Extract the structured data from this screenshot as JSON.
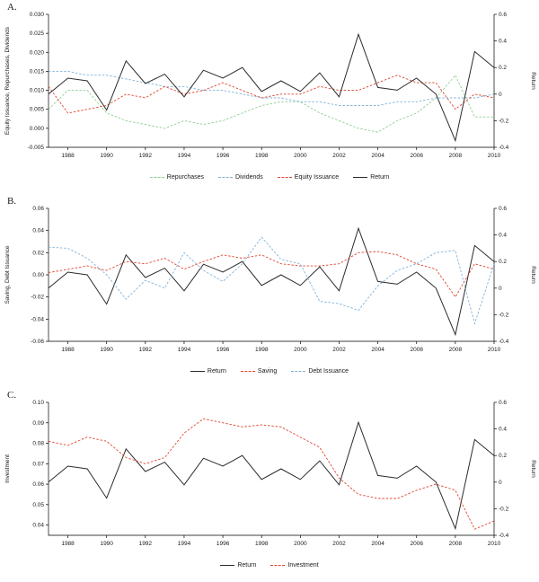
{
  "figure": {
    "background": "#ffffff",
    "text_color": "#1a1a1a",
    "axis_color": "#000000"
  },
  "chart_data": [
    {
      "type": "line",
      "panel_label": "A.",
      "ylabel_left": "Equity Issuance, Repurchases, Dividends",
      "ylabel_right": "Return",
      "x_range": [
        1987,
        2010
      ],
      "x_ticks": [
        1988,
        1990,
        1992,
        1994,
        1996,
        1998,
        2000,
        2002,
        2004,
        2006,
        2008,
        2010
      ],
      "left_axis": {
        "min": -0.005,
        "max": 0.03,
        "ticks": [
          0.03,
          0.025,
          0.02,
          0.015,
          0.01,
          0.005,
          0.0,
          -0.005
        ],
        "tick_labels": [
          "0.030",
          "0.025",
          "0.020",
          "0.015",
          "0.010",
          "0.005",
          "0.000",
          "-0.005"
        ]
      },
      "right_axis": {
        "min": -0.4,
        "max": 0.6,
        "ticks": [
          0.6,
          0.4,
          0.2,
          0,
          -0.2,
          -0.4
        ],
        "tick_labels": [
          "0.6",
          "0.4",
          "0.2",
          "0",
          "-0.2",
          "-0.4"
        ]
      },
      "x": [
        1987,
        1988,
        1989,
        1990,
        1991,
        1992,
        1993,
        1994,
        1995,
        1996,
        1997,
        1998,
        1999,
        2000,
        2001,
        2002,
        2003,
        2004,
        2005,
        2006,
        2007,
        2008,
        2009,
        2010
      ],
      "series": [
        {
          "name": "Repurchases",
          "color": "#8fce8f",
          "dash": true,
          "axis": "left",
          "values": [
            0.005,
            0.01,
            0.01,
            0.004,
            0.002,
            0.001,
            0.0,
            0.002,
            0.001,
            0.002,
            0.004,
            0.006,
            0.007,
            0.007,
            0.004,
            0.002,
            0.0,
            -0.001,
            0.002,
            0.004,
            0.008,
            0.014,
            0.003,
            0.003
          ]
        },
        {
          "name": "Dividends",
          "color": "#7fb2d9",
          "dash": true,
          "axis": "left",
          "values": [
            0.015,
            0.015,
            0.014,
            0.014,
            0.013,
            0.012,
            0.011,
            0.011,
            0.01,
            0.01,
            0.009,
            0.008,
            0.008,
            0.007,
            0.007,
            0.006,
            0.006,
            0.006,
            0.007,
            0.007,
            0.008,
            0.008,
            0.008,
            0.009
          ]
        },
        {
          "name": "Equity Issuance",
          "color": "#e0442e",
          "dash": true,
          "axis": "left",
          "values": [
            0.011,
            0.004,
            0.005,
            0.006,
            0.009,
            0.008,
            0.011,
            0.009,
            0.01,
            0.012,
            0.01,
            0.008,
            0.009,
            0.009,
            0.011,
            0.01,
            0.01,
            0.012,
            0.014,
            0.012,
            0.012,
            0.005,
            0.009,
            0.008
          ]
        },
        {
          "name": "Return",
          "color": "#2b2b2b",
          "dash": false,
          "axis": "right",
          "values": [
            0.0,
            0.12,
            0.1,
            -0.12,
            0.25,
            0.08,
            0.15,
            -0.02,
            0.18,
            0.12,
            0.2,
            0.02,
            0.1,
            0.02,
            0.16,
            -0.02,
            0.45,
            0.05,
            0.03,
            0.12,
            0.0,
            -0.35,
            0.32,
            0.2
          ]
        }
      ]
    },
    {
      "type": "line",
      "panel_label": "B.",
      "ylabel_left": "Saving, Debt Issuance",
      "ylabel_right": "Return",
      "x_range": [
        1987,
        2010
      ],
      "x_ticks": [
        1988,
        1990,
        1992,
        1994,
        1996,
        1998,
        2000,
        2002,
        2004,
        2006,
        2008,
        2010
      ],
      "left_axis": {
        "min": -0.06,
        "max": 0.06,
        "ticks": [
          0.06,
          0.04,
          0.02,
          0.0,
          -0.02,
          -0.04,
          -0.06
        ],
        "tick_labels": [
          "0.06",
          "0.04",
          "0.02",
          "0.00",
          "-0.02",
          "-0.04",
          "-0.06"
        ]
      },
      "right_axis": {
        "min": -0.4,
        "max": 0.6,
        "ticks": [
          0.6,
          0.4,
          0.2,
          0,
          -0.2,
          -0.4
        ],
        "tick_labels": [
          "0.6",
          "0.4",
          "0.2",
          "0",
          "-0.2",
          "-0.4"
        ]
      },
      "x": [
        1987,
        1988,
        1989,
        1990,
        1991,
        1992,
        1993,
        1994,
        1995,
        1996,
        1997,
        1998,
        1999,
        2000,
        2001,
        2002,
        2003,
        2004,
        2005,
        2006,
        2007,
        2008,
        2009,
        2010
      ],
      "series": [
        {
          "name": "Return",
          "color": "#2b2b2b",
          "dash": false,
          "axis": "right",
          "values": [
            0.0,
            0.12,
            0.1,
            -0.12,
            0.25,
            0.08,
            0.15,
            -0.02,
            0.18,
            0.12,
            0.2,
            0.02,
            0.1,
            0.02,
            0.16,
            -0.02,
            0.45,
            0.05,
            0.03,
            0.12,
            0.0,
            -0.35,
            0.32,
            0.2
          ]
        },
        {
          "name": "Saving",
          "color": "#e0442e",
          "dash": true,
          "axis": "left",
          "values": [
            0.002,
            0.005,
            0.008,
            0.004,
            0.012,
            0.01,
            0.015,
            0.005,
            0.012,
            0.018,
            0.015,
            0.018,
            0.01,
            0.008,
            0.008,
            0.01,
            0.02,
            0.021,
            0.018,
            0.01,
            0.005,
            -0.02,
            0.01,
            0.005
          ]
        },
        {
          "name": "Debt Issuance",
          "color": "#7fb2d9",
          "dash": true,
          "axis": "left",
          "values": [
            0.025,
            0.024,
            0.015,
            0.0,
            -0.022,
            -0.005,
            -0.012,
            0.02,
            0.004,
            -0.006,
            0.01,
            0.034,
            0.014,
            0.01,
            -0.024,
            -0.026,
            -0.032,
            -0.01,
            0.004,
            0.01,
            0.02,
            0.022,
            -0.044,
            0.01
          ]
        }
      ]
    },
    {
      "type": "line",
      "panel_label": "C.",
      "ylabel_left": "Investment",
      "ylabel_right": "Return",
      "x_range": [
        1987,
        2010
      ],
      "x_ticks": [
        1988,
        1990,
        1992,
        1994,
        1996,
        1998,
        2000,
        2002,
        2004,
        2006,
        2008,
        2010
      ],
      "left_axis": {
        "min": 0.035,
        "max": 0.1,
        "ticks": [
          0.1,
          0.09,
          0.08,
          0.07,
          0.06,
          0.05,
          0.04
        ],
        "tick_labels": [
          "0.10",
          "0.09",
          "0.08",
          "0.07",
          "0.06",
          "0.05",
          "0.04"
        ]
      },
      "right_axis": {
        "min": -0.4,
        "max": 0.6,
        "ticks": [
          0.6,
          0.4,
          0.2,
          0,
          -0.2,
          -0.4
        ],
        "tick_labels": [
          "0.6",
          "0.4",
          "0.2",
          "0",
          "-0.2",
          "-0.4"
        ]
      },
      "x": [
        1987,
        1988,
        1989,
        1990,
        1991,
        1992,
        1993,
        1994,
        1995,
        1996,
        1997,
        1998,
        1999,
        2000,
        2001,
        2002,
        2003,
        2004,
        2005,
        2006,
        2007,
        2008,
        2009,
        2010
      ],
      "series": [
        {
          "name": "Return",
          "color": "#2b2b2b",
          "dash": false,
          "axis": "right",
          "values": [
            0.0,
            0.12,
            0.1,
            -0.12,
            0.25,
            0.08,
            0.15,
            -0.02,
            0.18,
            0.12,
            0.2,
            0.02,
            0.1,
            0.02,
            0.16,
            -0.02,
            0.45,
            0.05,
            0.03,
            0.12,
            0.0,
            -0.35,
            0.32,
            0.2
          ]
        },
        {
          "name": "Investment",
          "color": "#e0442e",
          "dash": true,
          "axis": "left",
          "values": [
            0.081,
            0.079,
            0.083,
            0.081,
            0.073,
            0.07,
            0.073,
            0.085,
            0.092,
            0.09,
            0.088,
            0.089,
            0.088,
            0.083,
            0.078,
            0.063,
            0.055,
            0.053,
            0.053,
            0.057,
            0.06,
            0.057,
            0.038,
            0.042
          ]
        }
      ]
    }
  ]
}
